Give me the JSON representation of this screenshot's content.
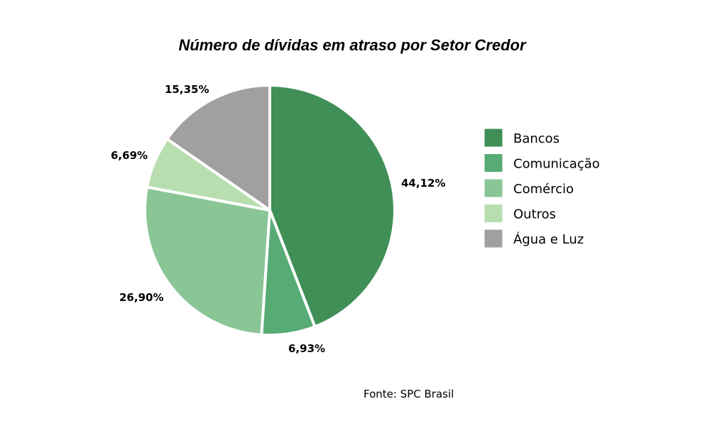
{
  "chart_data": {
    "type": "pie",
    "title": "Número de dívidas em atraso por Setor Credor",
    "categories": [
      "Bancos",
      "Comunicação",
      "Comércio",
      "Outros",
      "Água e Luz"
    ],
    "values": [
      44.12,
      6.93,
      26.9,
      6.69,
      15.35
    ],
    "value_labels": [
      "44,12%",
      "6,93%",
      "26,90%",
      "6,69%",
      "15,35%"
    ],
    "colors": [
      "#3f8f56",
      "#57ab74",
      "#89c595",
      "#b8deb0",
      "#a0a0a0"
    ],
    "direction": "clockwise",
    "start_position": "top",
    "legend": {
      "position": "right",
      "entries": [
        "Bancos",
        "Comunicação",
        "Comércio",
        "Outros",
        "Água e Luz"
      ]
    },
    "source": "Fonte: SPC Brasil"
  }
}
